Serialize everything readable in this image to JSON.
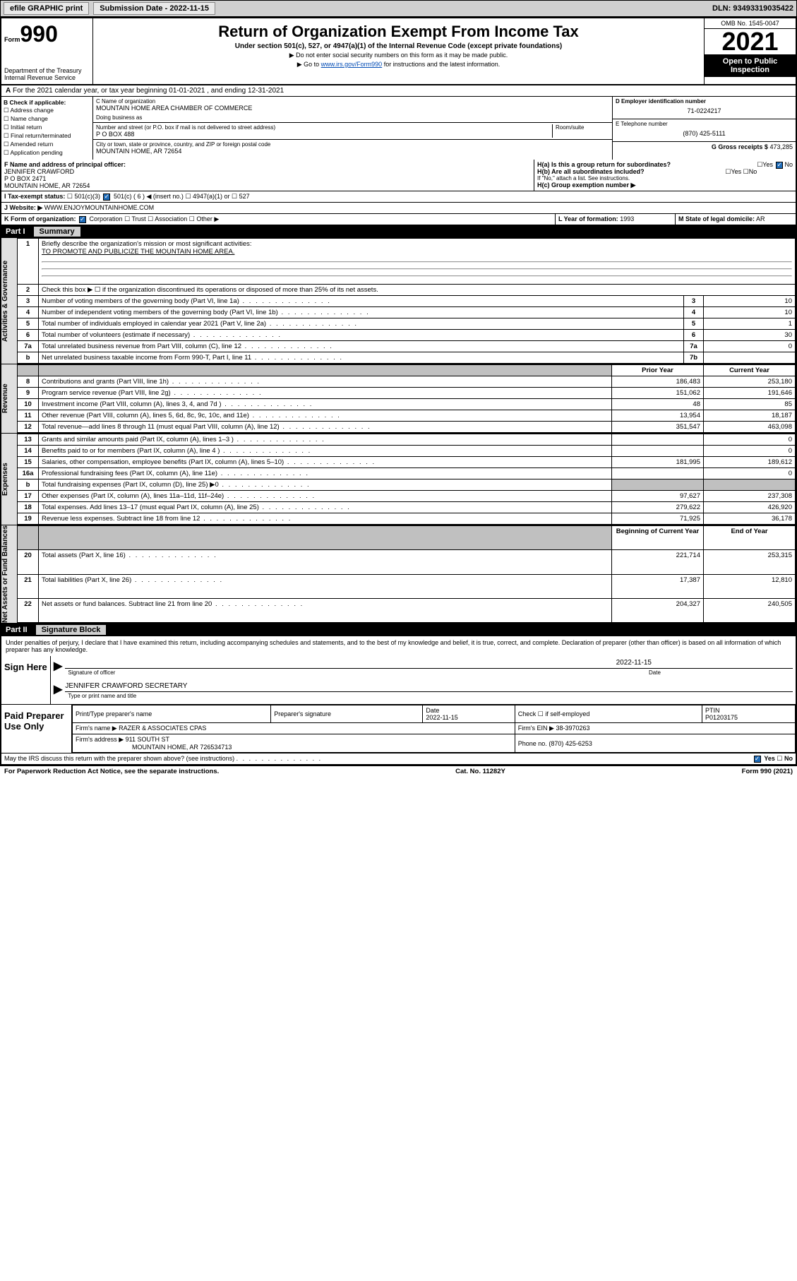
{
  "topbar": {
    "efile_label": "efile GRAPHIC print",
    "submission_label": "Submission Date - 2022-11-15",
    "dln": "DLN: 93493319035422"
  },
  "header": {
    "form_prefix": "Form",
    "form_number": "990",
    "title": "Return of Organization Exempt From Income Tax",
    "subtitle": "Under section 501(c), 527, or 4947(a)(1) of the Internal Revenue Code (except private foundations)",
    "note1": "▶ Do not enter social security numbers on this form as it may be made public.",
    "note2_prefix": "▶ Go to ",
    "note2_link": "www.irs.gov/Form990",
    "note2_suffix": " for instructions and the latest information.",
    "dept": "Department of the Treasury\nInternal Revenue Service",
    "omb": "OMB No. 1545-0047",
    "year": "2021",
    "inspection": "Open to Public Inspection"
  },
  "line_a": "For the 2021 calendar year, or tax year beginning 01-01-2021   , and ending 12-31-2021",
  "section_b": {
    "header": "B Check if applicable:",
    "options": [
      "Address change",
      "Name change",
      "Initial return",
      "Final return/terminated",
      "Amended return",
      "Application pending"
    ]
  },
  "section_c": {
    "label": "C Name of organization",
    "org_name": "MOUNTAIN HOME AREA CHAMBER OF COMMERCE",
    "dba_label": "Doing business as",
    "dba": "",
    "street_label": "Number and street (or P.O. box if mail is not delivered to street address)",
    "street": "P O BOX 488",
    "room_label": "Room/suite",
    "city_label": "City or town, state or province, country, and ZIP or foreign postal code",
    "city": "MOUNTAIN HOME, AR  72654"
  },
  "section_d": {
    "label": "D Employer identification number",
    "value": "71-0224217"
  },
  "section_e": {
    "label": "E Telephone number",
    "value": "(870) 425-5111"
  },
  "section_g": {
    "label": "G Gross receipts $",
    "value": "473,285"
  },
  "section_f": {
    "label": "F Name and address of principal officer:",
    "name": "JENNIFER CRAWFORD",
    "addr1": "P O BOX 2471",
    "addr2": "MOUNTAIN HOME, AR  72654"
  },
  "section_h": {
    "ha": "H(a)  Is this a group return for subordinates?",
    "hb": "H(b)  Are all subordinates included?",
    "hb_note": "If \"No,\" attach a list. See instructions.",
    "hc": "H(c)  Group exemption number ▶"
  },
  "section_i": {
    "label": "I   Tax-exempt status:",
    "opts": [
      "501(c)(3)",
      "501(c) ( 6 ) ◀ (insert no.)",
      "4947(a)(1) or",
      "527"
    ]
  },
  "section_j": {
    "label": "J   Website: ▶",
    "value": "WWW.ENJOYMOUNTAINHOME.COM"
  },
  "section_k": {
    "label": "K Form of organization:",
    "opts": [
      "Corporation",
      "Trust",
      "Association",
      "Other ▶"
    ]
  },
  "section_l": {
    "label": "L Year of formation:",
    "value": "1993"
  },
  "section_m": {
    "label": "M State of legal domicile:",
    "value": "AR"
  },
  "part1": {
    "label": "Part I",
    "title": "Summary",
    "q1": "Briefly describe the organization's mission or most significant activities:",
    "q1_ans": "TO PROMOTE AND PUBLICIZE THE MOUNTAIN HOME AREA.",
    "q2": "Check this box ▶ ☐  if the organization discontinued its operations or disposed of more than 25% of its net assets.",
    "governance_rows": [
      {
        "n": "3",
        "desc": "Number of voting members of the governing body (Part VI, line 1a)",
        "key": "3",
        "val": "10"
      },
      {
        "n": "4",
        "desc": "Number of independent voting members of the governing body (Part VI, line 1b)",
        "key": "4",
        "val": "10"
      },
      {
        "n": "5",
        "desc": "Total number of individuals employed in calendar year 2021 (Part V, line 2a)",
        "key": "5",
        "val": "1"
      },
      {
        "n": "6",
        "desc": "Total number of volunteers (estimate if necessary)",
        "key": "6",
        "val": "30"
      },
      {
        "n": "7a",
        "desc": "Total unrelated business revenue from Part VIII, column (C), line 12",
        "key": "7a",
        "val": "0"
      },
      {
        "n": "b",
        "desc": "Net unrelated business taxable income from Form 990-T, Part I, line 11",
        "key": "7b",
        "val": ""
      }
    ],
    "col_prior": "Prior Year",
    "col_current": "Current Year",
    "revenue_rows": [
      {
        "n": "8",
        "desc": "Contributions and grants (Part VIII, line 1h)",
        "prior": "186,483",
        "curr": "253,180"
      },
      {
        "n": "9",
        "desc": "Program service revenue (Part VIII, line 2g)",
        "prior": "151,062",
        "curr": "191,646"
      },
      {
        "n": "10",
        "desc": "Investment income (Part VIII, column (A), lines 3, 4, and 7d )",
        "prior": "48",
        "curr": "85"
      },
      {
        "n": "11",
        "desc": "Other revenue (Part VIII, column (A), lines 5, 6d, 8c, 9c, 10c, and 11e)",
        "prior": "13,954",
        "curr": "18,187"
      },
      {
        "n": "12",
        "desc": "Total revenue—add lines 8 through 11 (must equal Part VIII, column (A), line 12)",
        "prior": "351,547",
        "curr": "463,098"
      }
    ],
    "expense_rows": [
      {
        "n": "13",
        "desc": "Grants and similar amounts paid (Part IX, column (A), lines 1–3 )",
        "prior": "",
        "curr": "0"
      },
      {
        "n": "14",
        "desc": "Benefits paid to or for members (Part IX, column (A), line 4 )",
        "prior": "",
        "curr": "0"
      },
      {
        "n": "15",
        "desc": "Salaries, other compensation, employee benefits (Part IX, column (A), lines 5–10)",
        "prior": "181,995",
        "curr": "189,612"
      },
      {
        "n": "16a",
        "desc": "Professional fundraising fees (Part IX, column (A), line 11e)",
        "prior": "",
        "curr": "0"
      },
      {
        "n": "b",
        "desc": "Total fundraising expenses (Part IX, column (D), line 25) ▶0",
        "prior": "GREY",
        "curr": "GREY"
      },
      {
        "n": "17",
        "desc": "Other expenses (Part IX, column (A), lines 11a–11d, 11f–24e)",
        "prior": "97,627",
        "curr": "237,308"
      },
      {
        "n": "18",
        "desc": "Total expenses. Add lines 13–17 (must equal Part IX, column (A), line 25)",
        "prior": "279,622",
        "curr": "426,920"
      },
      {
        "n": "19",
        "desc": "Revenue less expenses. Subtract line 18 from line 12",
        "prior": "71,925",
        "curr": "36,178"
      }
    ],
    "col_begin": "Beginning of Current Year",
    "col_end": "End of Year",
    "net_rows": [
      {
        "n": "20",
        "desc": "Total assets (Part X, line 16)",
        "prior": "221,714",
        "curr": "253,315"
      },
      {
        "n": "21",
        "desc": "Total liabilities (Part X, line 26)",
        "prior": "17,387",
        "curr": "12,810"
      },
      {
        "n": "22",
        "desc": "Net assets or fund balances. Subtract line 21 from line 20",
        "prior": "204,327",
        "curr": "240,505"
      }
    ],
    "vert_gov": "Activities & Governance",
    "vert_rev": "Revenue",
    "vert_exp": "Expenses",
    "vert_net": "Net Assets or Fund Balances"
  },
  "part2": {
    "label": "Part II",
    "title": "Signature Block",
    "declaration": "Under penalties of perjury, I declare that I have examined this return, including accompanying schedules and statements, and to the best of my knowledge and belief, it is true, correct, and complete. Declaration of preparer (other than officer) is based on all information of which preparer has any knowledge.",
    "sign_here": "Sign Here",
    "sig_officer_label": "Signature of officer",
    "sig_date": "2022-11-15",
    "sig_date_label": "Date",
    "officer_name": "JENNIFER CRAWFORD SECRETARY",
    "officer_name_label": "Type or print name and title",
    "paid_prep": "Paid Preparer Use Only",
    "prep_name_label": "Print/Type preparer's name",
    "prep_sig_label": "Preparer's signature",
    "prep_date_label": "Date",
    "prep_date": "2022-11-15",
    "prep_check_label": "Check ☐ if self-employed",
    "ptin_label": "PTIN",
    "ptin": "P01203175",
    "firm_name_label": "Firm's name   ▶",
    "firm_name": "RAZER & ASSOCIATES CPAS",
    "firm_ein_label": "Firm's EIN ▶",
    "firm_ein": "38-3970263",
    "firm_addr_label": "Firm's address ▶",
    "firm_addr": "911 SOUTH ST",
    "firm_city": "MOUNTAIN HOME, AR  726534713",
    "phone_label": "Phone no.",
    "phone": "(870) 425-6253",
    "discuss": "May the IRS discuss this return with the preparer shown above? (see instructions)",
    "yes": "Yes",
    "no": "No"
  },
  "footer": {
    "left": "For Paperwork Reduction Act Notice, see the separate instructions.",
    "mid": "Cat. No. 11282Y",
    "right": "Form 990 (2021)"
  }
}
